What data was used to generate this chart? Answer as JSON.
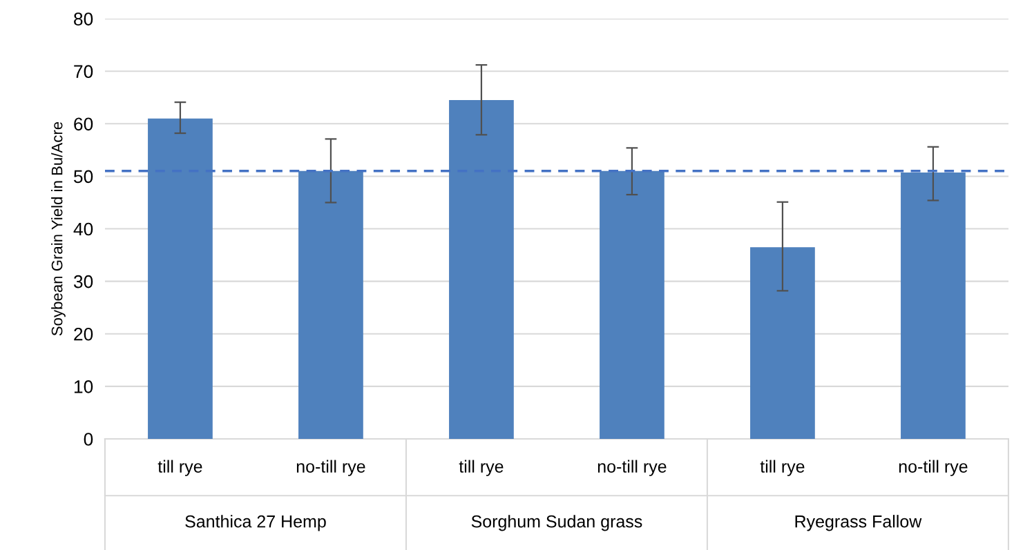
{
  "chart_data": {
    "type": "bar",
    "ylabel": "Soybean Grain Yield in Bu/Acre",
    "categories": [
      "till rye",
      "no-till rye",
      "till rye",
      "no-till rye",
      "till rye",
      "no-till rye"
    ],
    "values": [
      61,
      51,
      64.5,
      51,
      36.5,
      50.7
    ],
    "errors": [
      [
        58.2,
        64.1
      ],
      [
        45,
        57.1
      ],
      [
        57.9,
        71.2
      ],
      [
        46.5,
        55.4
      ],
      [
        28.2,
        45.1
      ],
      [
        45.4,
        55.6
      ]
    ],
    "color": "#4f81bd",
    "ylim": [
      0,
      80
    ],
    "yticks": [
      0,
      10,
      20,
      30,
      40,
      50,
      60,
      70,
      80
    ],
    "grid": "y",
    "ref_lines": [
      {
        "axis": "y",
        "value": 51,
        "color": "#4472c4",
        "line_style": "dashed"
      }
    ],
    "annotations": [
      "Santhica 27 Hemp",
      "Sorghum Sudan grass",
      "Ryegrass Fallow"
    ]
  }
}
